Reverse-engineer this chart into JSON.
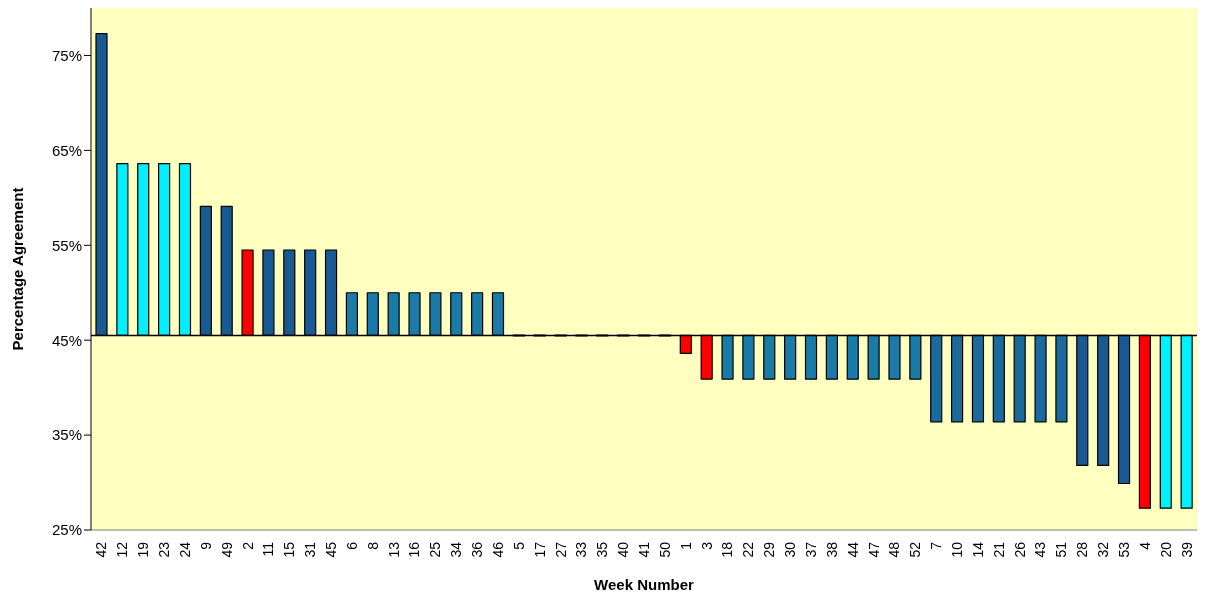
{
  "chart_data": {
    "type": "bar",
    "xlabel": "Week Number",
    "ylabel": "Percentage Agreement",
    "categories": [
      "42",
      "12",
      "19",
      "23",
      "24",
      "9",
      "49",
      "2",
      "11",
      "15",
      "31",
      "45",
      "6",
      "8",
      "13",
      "16",
      "25",
      "34",
      "36",
      "46",
      "5",
      "17",
      "27",
      "33",
      "35",
      "40",
      "41",
      "50",
      "1",
      "3",
      "18",
      "22",
      "29",
      "30",
      "37",
      "38",
      "44",
      "47",
      "48",
      "52",
      "7",
      "10",
      "14",
      "21",
      "26",
      "43",
      "51",
      "28",
      "32",
      "53",
      "4",
      "20",
      "39"
    ],
    "base": [
      45.5,
      45.5,
      45.5,
      45.5,
      45.5,
      45.5,
      45.5,
      45.5,
      45.5,
      45.5,
      45.5,
      45.5,
      45.5,
      45.5,
      45.5,
      45.5,
      45.5,
      45.5,
      45.5,
      45.5,
      45.5,
      45.5,
      45.5,
      45.5,
      45.5,
      45.5,
      45.5,
      45.5,
      45.5,
      45.5,
      45.5,
      45.5,
      45.5,
      45.5,
      45.5,
      45.5,
      45.5,
      45.5,
      45.5,
      45.5,
      45.5,
      45.5,
      45.5,
      45.5,
      45.5,
      45.5,
      45.5,
      45.5,
      45.5,
      45.5,
      45.5,
      45.5,
      45.5
    ],
    "values": [
      31.8,
      18.1,
      18.1,
      18.1,
      18.1,
      13.6,
      13.6,
      9.0,
      9.0,
      9.0,
      9.0,
      9.0,
      4.5,
      4.5,
      4.5,
      4.5,
      4.5,
      4.5,
      4.5,
      4.5,
      0,
      0,
      0,
      0,
      0,
      0,
      0,
      0,
      -1.9,
      -4.6,
      -4.6,
      -4.6,
      -4.6,
      -4.6,
      -4.6,
      -4.6,
      -4.6,
      -4.6,
      -4.6,
      -4.6,
      -9.1,
      -9.1,
      -9.1,
      -9.1,
      -9.1,
      -9.1,
      -9.1,
      -13.7,
      -13.7,
      -15.6,
      -18.2,
      -18.2,
      -18.2
    ],
    "colors": [
      "#1a5a94",
      "#00f0ff",
      "#00f0ff",
      "#00f0ff",
      "#00f0ff",
      "#1a5a94",
      "#1a5a94",
      "#ff0000",
      "#1a5a94",
      "#1a5a94",
      "#1a5a94",
      "#1a5a94",
      "#1a7aa8",
      "#1a7aa8",
      "#1a7aa8",
      "#1a7aa8",
      "#1a7aa8",
      "#1a7aa8",
      "#1a7aa8",
      "#1a7aa8",
      "#000000",
      "#000000",
      "#000000",
      "#000000",
      "#000000",
      "#000000",
      "#000000",
      "#000000",
      "#ff0000",
      "#ff0000",
      "#1a7aa8",
      "#1a7aa8",
      "#1a7aa8",
      "#1a7aa8",
      "#1a7aa8",
      "#1a7aa8",
      "#1a7aa8",
      "#1a7aa8",
      "#1a7aa8",
      "#1a7aa8",
      "#1a6a9e",
      "#1a6a9e",
      "#1a6a9e",
      "#1a6a9e",
      "#1a6a9e",
      "#1a6a9e",
      "#1a6a9e",
      "#1a5a94",
      "#1a5a94",
      "#1a5a94",
      "#ff0000",
      "#00f0ff",
      "#00f0ff"
    ],
    "ylim": [
      25,
      80
    ],
    "yticks": [
      {
        "value": 25,
        "label": "25%"
      },
      {
        "value": 35,
        "label": "35%"
      },
      {
        "value": 45,
        "label": "45%"
      },
      {
        "value": 55,
        "label": "55%"
      },
      {
        "value": 65,
        "label": "65%"
      },
      {
        "value": 75,
        "label": "75%"
      }
    ],
    "ref_lines": [
      {
        "axis": "y",
        "value": 45.5,
        "color": "#000000"
      }
    ],
    "grid": false,
    "legend": false
  }
}
